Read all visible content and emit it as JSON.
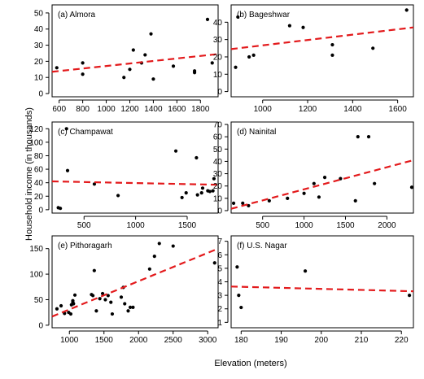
{
  "figure": {
    "ylabel": "Household income (in thousands)",
    "xlabel": "Elevation (meters)",
    "trend_color": "#e31a1c",
    "point_color": "#000000"
  },
  "chart_data": [
    {
      "type": "scatter",
      "label": "(a) Almora",
      "xlim": [
        540,
        1950
      ],
      "ylim": [
        -2,
        55
      ],
      "xticks": [
        600,
        800,
        1000,
        1200,
        1400,
        1600,
        1800
      ],
      "yticks": [
        0,
        10,
        20,
        30,
        40,
        50
      ],
      "x": [
        580,
        800,
        800,
        1150,
        1200,
        1230,
        1300,
        1330,
        1380,
        1400,
        1570,
        1750,
        1750,
        1860,
        1900
      ],
      "y": [
        16,
        12,
        19,
        10,
        15,
        27,
        19,
        24,
        37,
        9,
        17,
        14,
        13,
        46,
        19
      ],
      "trend": [
        [
          540,
          13.5
        ],
        [
          1950,
          24.5
        ]
      ]
    },
    {
      "type": "scatter",
      "label": "(b) Bageshwar",
      "xlim": [
        860,
        1670
      ],
      "ylim": [
        -3,
        50
      ],
      "xticks": [
        1000,
        1200,
        1400,
        1600
      ],
      "yticks": [
        0,
        10,
        20,
        30,
        40
      ],
      "x": [
        880,
        890,
        940,
        960,
        1120,
        1180,
        1310,
        1310,
        1490,
        1640
      ],
      "y": [
        14,
        43,
        20,
        21,
        38,
        37,
        27,
        21,
        25,
        47
      ],
      "trend": [
        [
          860,
          24.5
        ],
        [
          1670,
          37
        ]
      ]
    },
    {
      "type": "scatter",
      "label": "(c) Champawat",
      "xlim": [
        190,
        1800
      ],
      "ylim": [
        -5,
        130
      ],
      "xticks": [
        500,
        1000,
        1500
      ],
      "yticks": [
        0,
        20,
        40,
        60,
        80,
        100,
        120
      ],
      "x": [
        250,
        270,
        330,
        340,
        600,
        830,
        1390,
        1450,
        1490,
        1590,
        1600,
        1640,
        1650,
        1700,
        1720,
        1750,
        1760
      ],
      "y": [
        3,
        2,
        120,
        58,
        38,
        21,
        87,
        18,
        25,
        77,
        22,
        25,
        32,
        28,
        27,
        28,
        46
      ],
      "trend": [
        [
          190,
          42
        ],
        [
          1800,
          37
        ]
      ]
    },
    {
      "type": "scatter",
      "label": "(d) Nainital",
      "xlim": [
        120,
        2320
      ],
      "ylim": [
        -2,
        72
      ],
      "xticks": [
        500,
        1000,
        1500,
        2000
      ],
      "yticks": [
        0,
        10,
        20,
        30,
        40,
        50,
        60,
        70
      ],
      "x": [
        150,
        260,
        330,
        580,
        800,
        1000,
        1120,
        1180,
        1250,
        1440,
        1620,
        1650,
        1780,
        1850,
        2300
      ],
      "y": [
        6,
        6,
        4,
        8,
        10,
        14,
        22,
        11,
        27,
        26,
        8,
        60,
        60,
        22,
        19
      ],
      "trend": [
        [
          120,
          1.5
        ],
        [
          2320,
          41
        ]
      ]
    },
    {
      "type": "scatter",
      "label": "(e) Pithoragarh",
      "xlim": [
        750,
        3150
      ],
      "ylim": [
        -5,
        175
      ],
      "xticks": [
        1000,
        1500,
        2000,
        2500,
        3000
      ],
      "yticks": [
        0,
        50,
        100,
        150
      ],
      "x": [
        820,
        880,
        930,
        990,
        1020,
        1030,
        1050,
        1050,
        1060,
        1080,
        1320,
        1340,
        1360,
        1390,
        1440,
        1480,
        1520,
        1560,
        1600,
        1620,
        1750,
        1780,
        1800,
        1850,
        1880,
        1920,
        2160,
        2230,
        2300,
        2500,
        3100
      ],
      "y": [
        32,
        38,
        23,
        25,
        22,
        40,
        48,
        45,
        42,
        59,
        60,
        58,
        107,
        28,
        52,
        62,
        50,
        58,
        45,
        22,
        55,
        74,
        42,
        28,
        35,
        35,
        110,
        135,
        160,
        155,
        122
      ],
      "trend": [
        [
          750,
          17
        ],
        [
          3150,
          150
        ]
      ]
    },
    {
      "type": "scatter",
      "label": "(f) U.S. Nagar",
      "xlim": [
        177.5,
        223
      ],
      "ylim": [
        0.6,
        7.4
      ],
      "xticks": [
        180,
        190,
        200,
        210,
        220
      ],
      "yticks": [
        1,
        2,
        3,
        4,
        5,
        6,
        7
      ],
      "x": [
        179,
        179.4,
        180,
        196,
        222
      ],
      "y": [
        5.1,
        3.0,
        2.1,
        4.8,
        3.0
      ],
      "trend": [
        [
          177.5,
          3.65
        ],
        [
          223,
          3.3
        ]
      ]
    }
  ]
}
